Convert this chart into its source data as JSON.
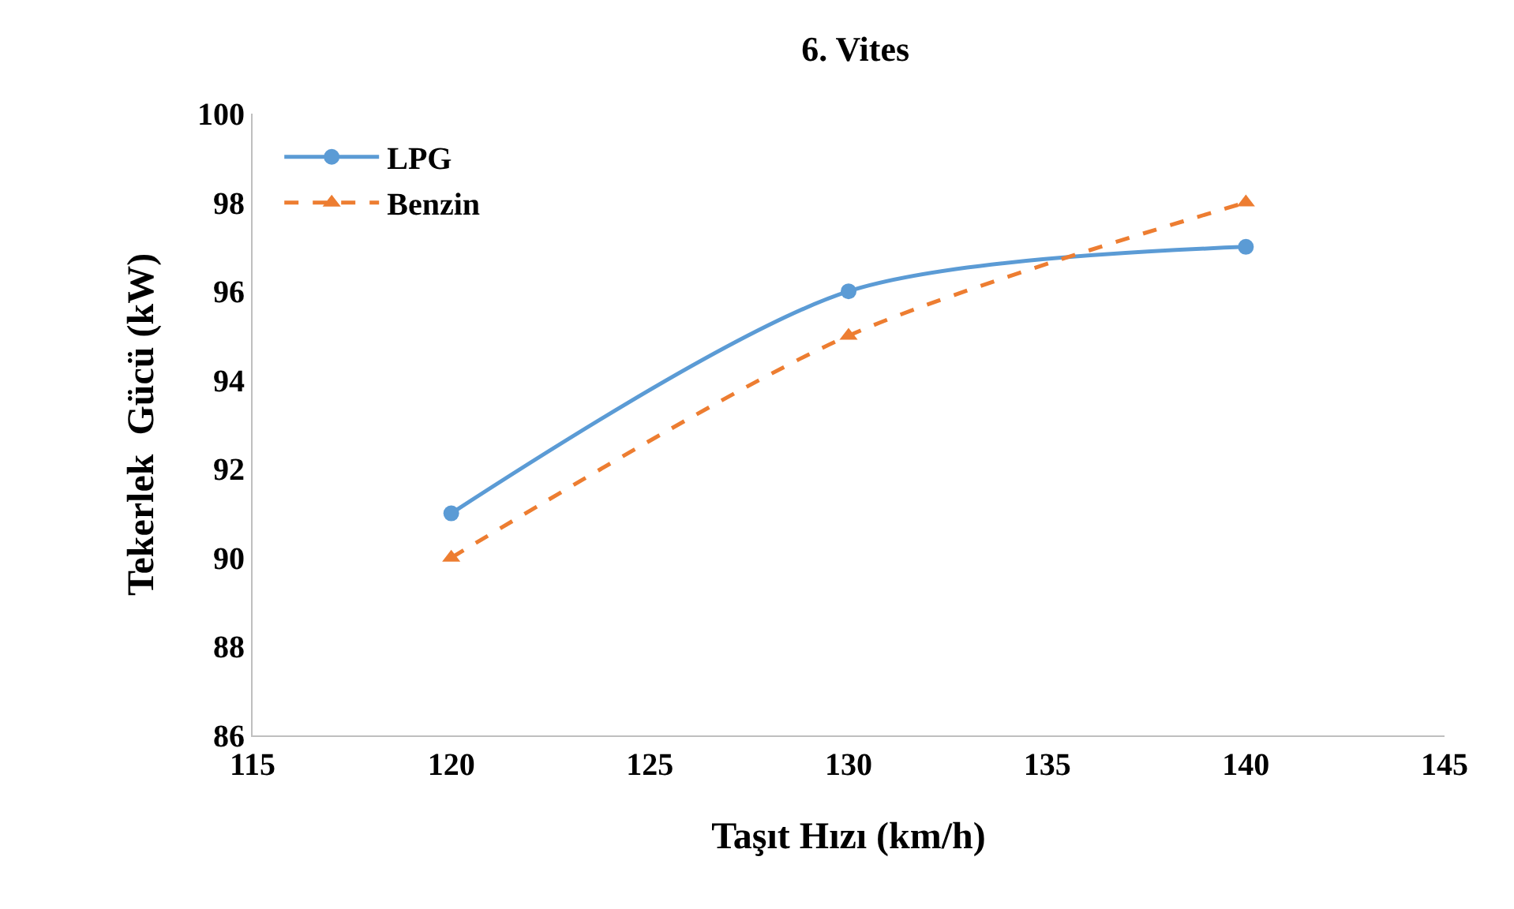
{
  "chart_data": {
    "type": "line",
    "title": "6. Vites",
    "xlabel": "Taşıt Hızı (km/h)",
    "ylabel": "Tekerlek  Gücü (kW)",
    "x": [
      120,
      130,
      140
    ],
    "series": [
      {
        "name": "LPG",
        "color": "#5b9bd5",
        "values": [
          91,
          96,
          97
        ],
        "marker": "circle",
        "line_style": "solid"
      },
      {
        "name": "Benzin",
        "color": "#ed7d31",
        "values": [
          90,
          95,
          98
        ],
        "marker": "triangle",
        "line_style": "dashed"
      }
    ],
    "xlim": [
      115,
      145
    ],
    "xticks": [
      115,
      120,
      125,
      130,
      135,
      140,
      145
    ],
    "ylim": [
      86,
      100
    ],
    "yticks": [
      86,
      88,
      90,
      92,
      94,
      96,
      98,
      100
    ],
    "grid": false,
    "legend": "top left"
  }
}
